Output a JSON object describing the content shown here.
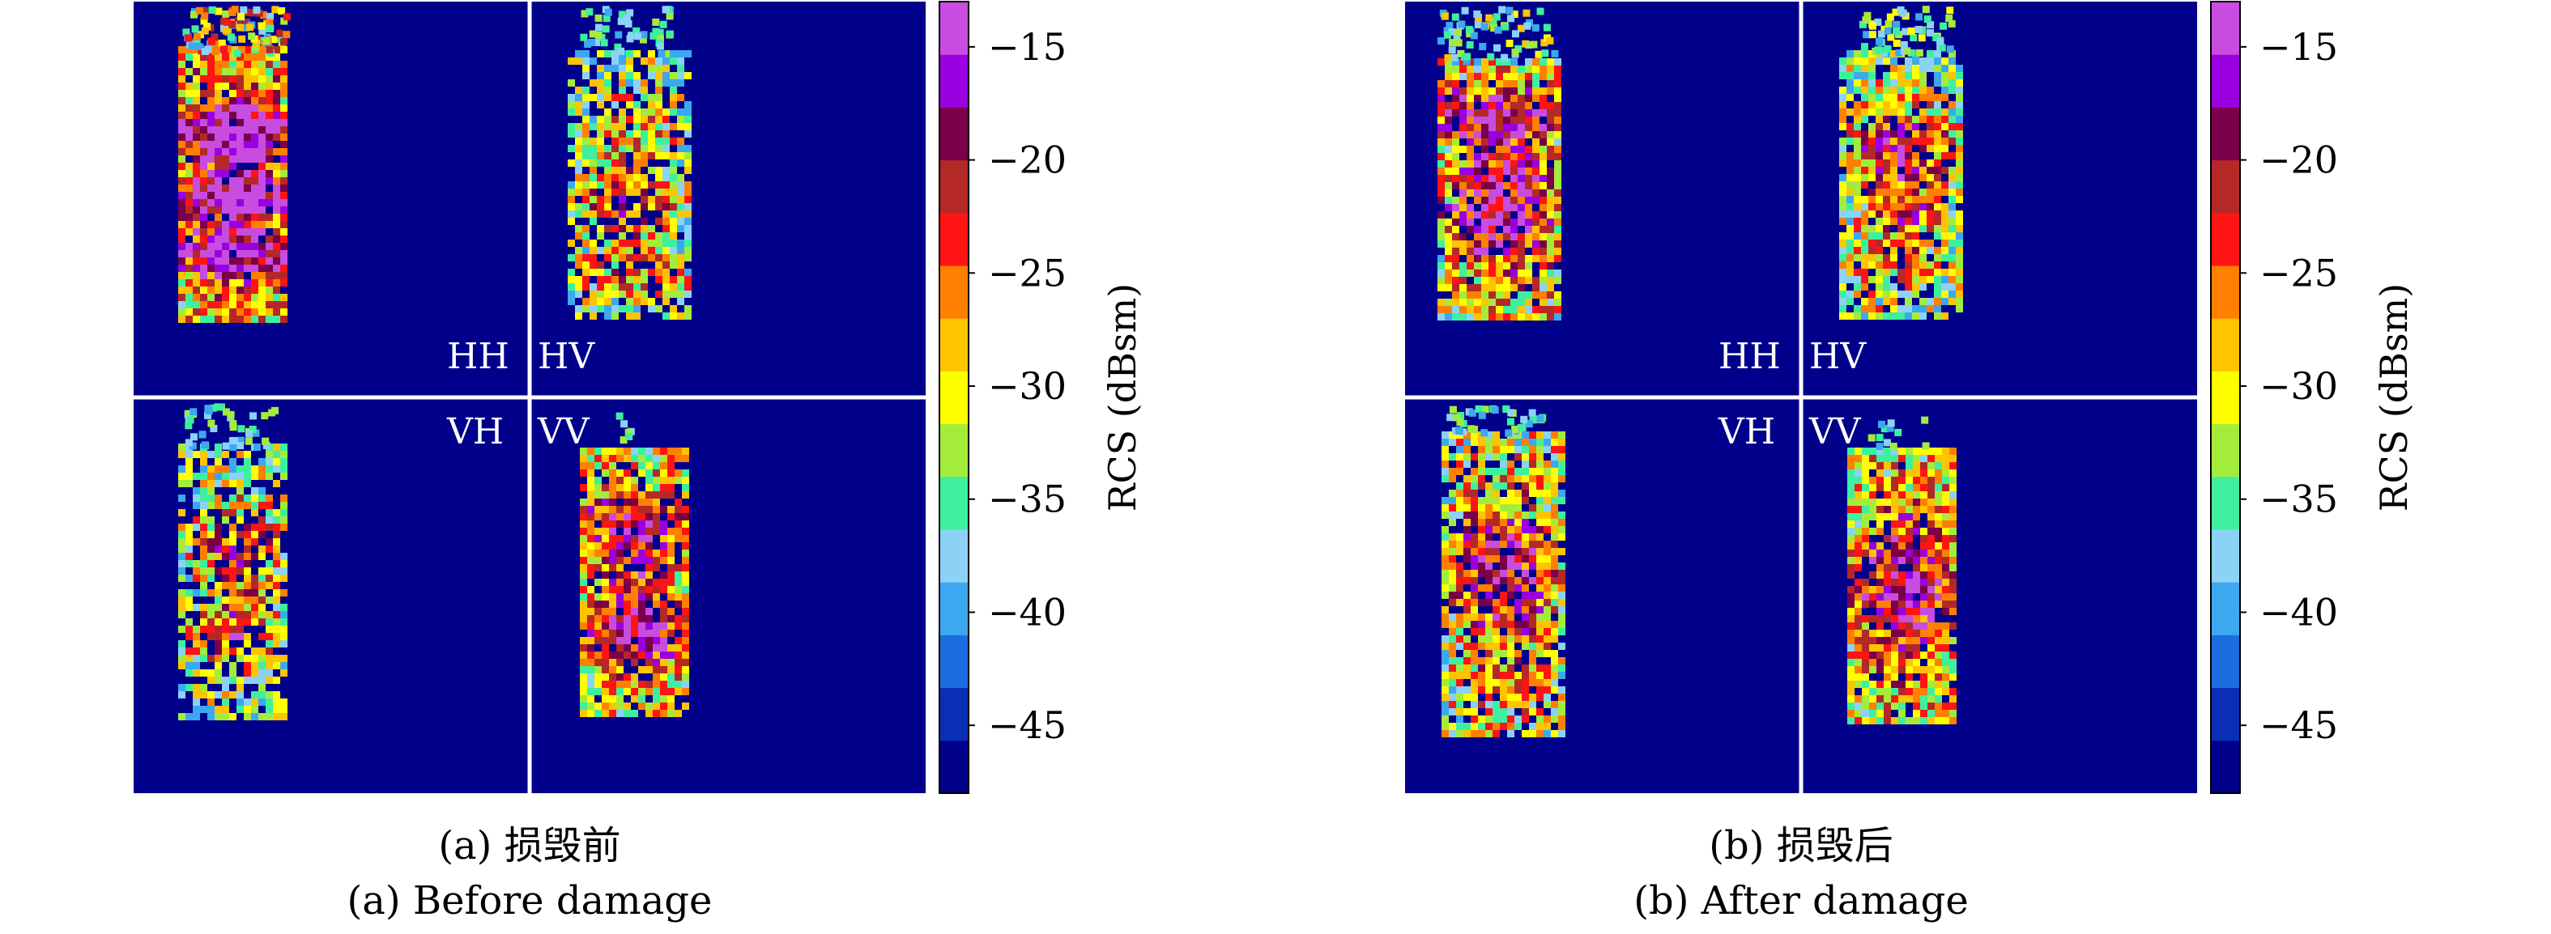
{
  "chart_data": [
    {
      "type": "heatmap",
      "caption_cn": "(a) 损毁前",
      "caption_en": "(a) Before damage",
      "panels": [
        {
          "label": "HH"
        },
        {
          "label": "HV"
        },
        {
          "label": "VH"
        },
        {
          "label": "VV"
        }
      ],
      "colorbar": {
        "label": "RCS (dBsm)",
        "range": [
          -48,
          -13
        ],
        "ticks": [
          -15,
          -20,
          -25,
          -30,
          -35,
          -40,
          -45
        ]
      }
    },
    {
      "type": "heatmap",
      "caption_cn": "(b) 损毁后",
      "caption_en": "(b) After damage",
      "panels": [
        {
          "label": "HH"
        },
        {
          "label": "HV"
        },
        {
          "label": "VH"
        },
        {
          "label": "VV"
        }
      ],
      "colorbar": {
        "label": "RCS (dBsm)",
        "range": [
          -48,
          -13
        ],
        "ticks": [
          -15,
          -20,
          -25,
          -30,
          -35,
          -40,
          -45
        ]
      }
    }
  ],
  "colormap": [
    "#00008b",
    "#0a2eb4",
    "#1c6ee0",
    "#3ca8f0",
    "#8cd2f6",
    "#3ef09e",
    "#a4ec3c",
    "#ffff00",
    "#ffc400",
    "#ff8000",
    "#ff1414",
    "#b42828",
    "#7a004a",
    "#9a00e0",
    "#c84ce0"
  ]
}
